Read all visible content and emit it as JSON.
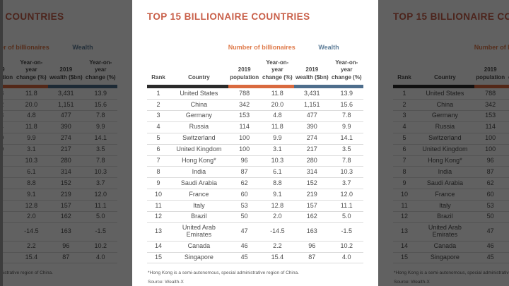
{
  "carousel": {
    "slides": [
      {
        "id": "previous",
        "dimmed": true
      },
      {
        "id": "current",
        "dimmed": false
      },
      {
        "id": "next",
        "dimmed": true
      }
    ],
    "dim_color": "rgba(0,0,0,0.62)"
  },
  "panel": {
    "title": "TOP 15 BILLIONAIRE COUNTRIES",
    "title_color": "#C9604A",
    "group_headers": [
      {
        "label": "Number of billionaires",
        "color": "#DF7A4A"
      },
      {
        "label": "Wealth",
        "color": "#5F7E99"
      }
    ],
    "columns": [
      "Rank",
      "Country",
      "2019\npopulation",
      "Year-on-year\nchange (%)",
      "2019\nwealth ($bn)",
      "Year-on-year\nchange (%)"
    ],
    "header_bar_colors": {
      "rank_country": "#2B2B2B",
      "number_of_billionaires": "#D96A3F",
      "wealth": "#4E6E8C"
    },
    "rows": [
      [
        "1",
        "United States",
        "788",
        "11.8",
        "3,431",
        "13.9"
      ],
      [
        "2",
        "China",
        "342",
        "20.0",
        "1,151",
        "15.6"
      ],
      [
        "3",
        "Germany",
        "153",
        "4.8",
        "477",
        "7.8"
      ],
      [
        "4",
        "Russia",
        "114",
        "11.8",
        "390",
        "9.9"
      ],
      [
        "5",
        "Switzerland",
        "100",
        "9.9",
        "274",
        "14.1"
      ],
      [
        "6",
        "United Kingdom",
        "100",
        "3.1",
        "217",
        "3.5"
      ],
      [
        "7",
        "Hong Kong*",
        "96",
        "10.3",
        "280",
        "7.8"
      ],
      [
        "8",
        "India",
        "87",
        "6.1",
        "314",
        "10.3"
      ],
      [
        "9",
        "Saudi Arabia",
        "62",
        "8.8",
        "152",
        "3.7"
      ],
      [
        "10",
        "France",
        "60",
        "9.1",
        "219",
        "12.0"
      ],
      [
        "11",
        "Italy",
        "53",
        "12.8",
        "157",
        "11.1"
      ],
      [
        "12",
        "Brazil",
        "50",
        "2.0",
        "162",
        "5.0"
      ],
      [
        "13",
        "United Arab Emirates",
        "47",
        "-14.5",
        "163",
        "-1.5"
      ],
      [
        "14",
        "Canada",
        "46",
        "2.2",
        "96",
        "10.2"
      ],
      [
        "15",
        "Singapore",
        "45",
        "15.4",
        "87",
        "4.0"
      ]
    ],
    "footnote": "*Hong Kong is a semi-autonomous, special administrative region of China.",
    "source": "Source: Wealth-X"
  },
  "chart_data": {
    "type": "table",
    "title": "TOP 15 BILLIONAIRE COUNTRIES",
    "column_groups": [
      {
        "label": "Number of billionaires",
        "columns": [
          "2019 population",
          "Year-on-year change (%)"
        ]
      },
      {
        "label": "Wealth",
        "columns": [
          "2019 wealth ($bn)",
          "Year-on-year change (%)"
        ]
      }
    ],
    "columns": [
      "Rank",
      "Country",
      "2019 population",
      "Year-on-year change (%)",
      "2019 wealth ($bn)",
      "Year-on-year change (%)"
    ],
    "rows": [
      [
        1,
        "United States",
        788,
        11.8,
        3431,
        13.9
      ],
      [
        2,
        "China",
        342,
        20.0,
        1151,
        15.6
      ],
      [
        3,
        "Germany",
        153,
        4.8,
        477,
        7.8
      ],
      [
        4,
        "Russia",
        114,
        11.8,
        390,
        9.9
      ],
      [
        5,
        "Switzerland",
        100,
        9.9,
        274,
        14.1
      ],
      [
        6,
        "United Kingdom",
        100,
        3.1,
        217,
        3.5
      ],
      [
        7,
        "Hong Kong*",
        96,
        10.3,
        280,
        7.8
      ],
      [
        8,
        "India",
        87,
        6.1,
        314,
        10.3
      ],
      [
        9,
        "Saudi Arabia",
        62,
        8.8,
        152,
        3.7
      ],
      [
        10,
        "France",
        60,
        9.1,
        219,
        12.0
      ],
      [
        11,
        "Italy",
        53,
        12.8,
        157,
        11.1
      ],
      [
        12,
        "Brazil",
        50,
        2.0,
        162,
        5.0
      ],
      [
        13,
        "United Arab Emirates",
        47,
        -14.5,
        163,
        -1.5
      ],
      [
        14,
        "Canada",
        46,
        2.2,
        96,
        10.2
      ],
      [
        15,
        "Singapore",
        45,
        15.4,
        87,
        4.0
      ]
    ],
    "footnote": "*Hong Kong is a semi-autonomous, special administrative region of China.",
    "source": "Source: Wealth-X"
  }
}
